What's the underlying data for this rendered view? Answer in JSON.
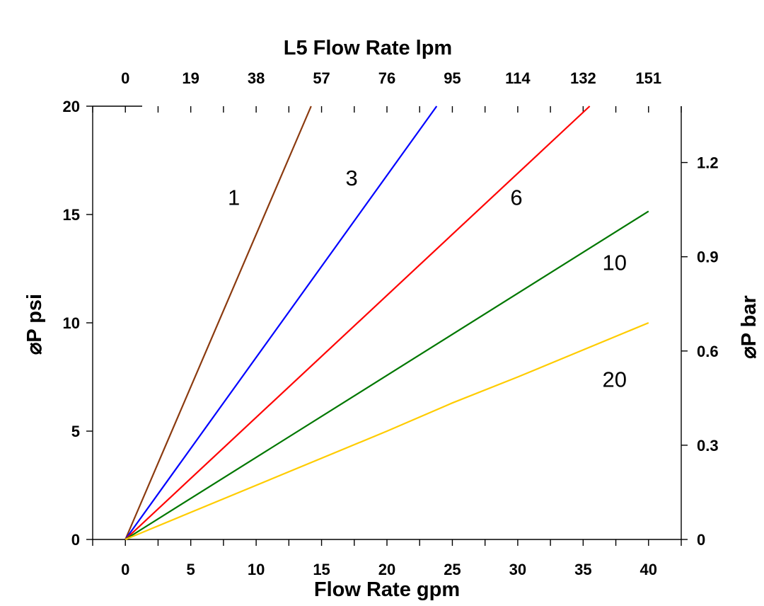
{
  "chart_data": {
    "type": "line",
    "x": [
      0,
      40
    ],
    "series": [
      {
        "name": "1",
        "color": "#8B3A0F",
        "points": [
          [
            0,
            0
          ],
          [
            14.2,
            20
          ]
        ]
      },
      {
        "name": "3",
        "color": "#0000FF",
        "points": [
          [
            0,
            0
          ],
          [
            23.8,
            20
          ]
        ]
      },
      {
        "name": "6",
        "color": "#FF0000",
        "points": [
          [
            0,
            0
          ],
          [
            35.5,
            20
          ]
        ]
      },
      {
        "name": "10",
        "color": "#007700",
        "points": [
          [
            0,
            0
          ],
          [
            40,
            15.15
          ]
        ]
      },
      {
        "name": "20",
        "color": "#FFCC00",
        "points": [
          [
            0,
            0
          ],
          [
            20,
            5
          ],
          [
            25,
            6.3
          ],
          [
            30,
            7.5
          ],
          [
            40,
            10
          ]
        ]
      }
    ],
    "xlabel": "Flow Rate gpm",
    "xlim": [
      -2.5,
      42.5
    ],
    "xticks": [
      "0",
      "5",
      "10",
      "15",
      "20",
      "25",
      "30",
      "35",
      "40"
    ],
    "ylabel": "⌀P psi",
    "ylim": [
      0,
      20
    ],
    "yticks": [
      "0",
      "5",
      "10",
      "15",
      "20"
    ],
    "x2label": "L5 Flow Rate lpm",
    "x2ticks": [
      "0",
      "19",
      "38",
      "57",
      "76",
      "95",
      "114",
      "132",
      "151"
    ],
    "y2label": "⌀P bar",
    "y2ticks": [
      "0",
      "0.3",
      "0.6",
      "0.9",
      "1.2"
    ],
    "y2_psi_per_bar": 14.5,
    "grid": false
  }
}
